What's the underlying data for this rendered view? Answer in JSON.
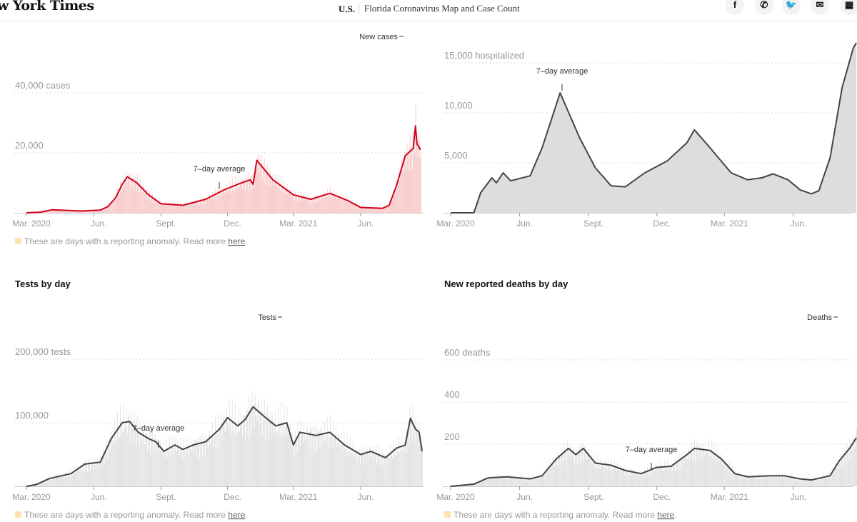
{
  "header": {
    "logo": "w York Times",
    "section": "U.S.",
    "title": "Florida Coronavirus Map and Case Count",
    "social": [
      {
        "name": "facebook-icon",
        "glyph": "f"
      },
      {
        "name": "whatsapp-icon",
        "glyph": "✆"
      },
      {
        "name": "twitter-icon",
        "glyph": "🐦"
      },
      {
        "name": "email-icon",
        "glyph": "✉"
      },
      {
        "name": "gift-icon",
        "glyph": "▦"
      }
    ]
  },
  "footnote": {
    "text": "These are days with a reporting anomaly. Read more ",
    "link": "here",
    "end": ".",
    "color": "#fde2ad"
  },
  "chart_data": [
    {
      "id": "cases",
      "type": "bar",
      "title": "",
      "color": "#d0021b",
      "bar_color": "#f7c9c9",
      "y_ticks": [
        {
          "value": 20000,
          "label": "20,000"
        },
        {
          "value": 40000,
          "label": "40,000 cases"
        }
      ],
      "x_ticks": [
        {
          "date": "2020-03-01",
          "label": "Mar. 2020"
        },
        {
          "date": "2020-06-01",
          "label": "Jun."
        },
        {
          "date": "2020-09-01",
          "label": "Sept."
        },
        {
          "date": "2020-12-01",
          "label": "Dec."
        },
        {
          "date": "2021-03-01",
          "label": "Mar. 2021"
        },
        {
          "date": "2021-06-01",
          "label": "Jun."
        }
      ],
      "annotations": {
        "bars": "New cases",
        "avg": "7–day average"
      },
      "avg_series": [
        [
          "2020-03-01",
          0
        ],
        [
          "2020-03-20",
          200
        ],
        [
          "2020-04-05",
          1000
        ],
        [
          "2020-05-15",
          600
        ],
        [
          "2020-06-10",
          900
        ],
        [
          "2020-06-20",
          2000
        ],
        [
          "2020-07-01",
          5000
        ],
        [
          "2020-07-10",
          9500
        ],
        [
          "2020-07-17",
          12000
        ],
        [
          "2020-07-30",
          10000
        ],
        [
          "2020-08-15",
          6000
        ],
        [
          "2020-09-01",
          3000
        ],
        [
          "2020-10-01",
          2500
        ],
        [
          "2020-11-01",
          4500
        ],
        [
          "2020-11-25",
          7500
        ],
        [
          "2020-12-15",
          9500
        ],
        [
          "2021-01-01",
          11000
        ],
        [
          "2021-01-05",
          9500
        ],
        [
          "2021-01-10",
          17500
        ],
        [
          "2021-02-01",
          11000
        ],
        [
          "2021-03-01",
          6000
        ],
        [
          "2021-03-25",
          4500
        ],
        [
          "2021-04-20",
          6500
        ],
        [
          "2021-05-15",
          4000
        ],
        [
          "2021-06-01",
          1800
        ],
        [
          "2021-07-01",
          1500
        ],
        [
          "2021-07-10",
          2500
        ],
        [
          "2021-07-20",
          9000
        ],
        [
          "2021-08-01",
          19000
        ],
        [
          "2021-08-12",
          21500
        ],
        [
          "2021-08-15",
          29000
        ],
        [
          "2021-08-17",
          23000
        ],
        [
          "2021-08-22",
          21000
        ]
      ]
    },
    {
      "id": "hospitalized",
      "type": "area",
      "title": "",
      "color": "#444444",
      "bar_color": "#dddddd",
      "y_ticks": [
        {
          "value": 5000,
          "label": "5,000"
        },
        {
          "value": 10000,
          "label": "10,000"
        },
        {
          "value": 15000,
          "label": "15,000 hospitalized"
        }
      ],
      "x_ticks": [
        {
          "date": "2020-03-01",
          "label": "Mar. 2020"
        },
        {
          "date": "2020-06-01",
          "label": "Jun."
        },
        {
          "date": "2020-09-01",
          "label": "Sept."
        },
        {
          "date": "2020-12-01",
          "label": "Dec."
        },
        {
          "date": "2021-03-01",
          "label": "Mar. 2021"
        },
        {
          "date": "2021-06-01",
          "label": "Jun."
        }
      ],
      "annotations": {
        "avg": "7–day average"
      },
      "avg_series": [
        [
          "2020-03-01",
          0
        ],
        [
          "2020-04-01",
          0
        ],
        [
          "2020-04-10",
          2000
        ],
        [
          "2020-04-25",
          3500
        ],
        [
          "2020-05-01",
          3000
        ],
        [
          "2020-05-10",
          4000
        ],
        [
          "2020-05-20",
          3200
        ],
        [
          "2020-06-15",
          3700
        ],
        [
          "2020-07-01",
          6500
        ],
        [
          "2020-07-25",
          12000
        ],
        [
          "2020-08-20",
          7500
        ],
        [
          "2020-09-10",
          4500
        ],
        [
          "2020-10-01",
          2700
        ],
        [
          "2020-10-20",
          2600
        ],
        [
          "2020-11-15",
          4000
        ],
        [
          "2020-12-15",
          5200
        ],
        [
          "2021-01-10",
          7000
        ],
        [
          "2021-01-20",
          8300
        ],
        [
          "2021-02-10",
          6500
        ],
        [
          "2021-03-10",
          4000
        ],
        [
          "2021-04-01",
          3300
        ],
        [
          "2021-04-20",
          3500
        ],
        [
          "2021-05-05",
          3900
        ],
        [
          "2021-05-25",
          3300
        ],
        [
          "2021-06-10",
          2300
        ],
        [
          "2021-06-25",
          1900
        ],
        [
          "2021-07-05",
          2200
        ],
        [
          "2021-07-20",
          5500
        ],
        [
          "2021-08-05",
          12500
        ],
        [
          "2021-08-20",
          16500
        ],
        [
          "2021-08-24",
          17000
        ]
      ]
    },
    {
      "id": "tests",
      "type": "bar",
      "title": "Tests by day",
      "color": "#444444",
      "bar_color": "#e2e2e2",
      "y_ticks": [
        {
          "value": 100000,
          "label": "100,000"
        },
        {
          "value": 200000,
          "label": "200,000 tests"
        }
      ],
      "x_ticks": [
        {
          "date": "2020-03-01",
          "label": "Mar. 2020"
        },
        {
          "date": "2020-06-01",
          "label": "Jun."
        },
        {
          "date": "2020-09-01",
          "label": "Sept."
        },
        {
          "date": "2020-12-01",
          "label": "Dec."
        },
        {
          "date": "2021-03-01",
          "label": "Mar. 2021"
        },
        {
          "date": "2021-06-01",
          "label": "Jun."
        }
      ],
      "annotations": {
        "bars": "Tests",
        "avg": "7–day average"
      },
      "avg_series": [
        [
          "2020-03-01",
          0
        ],
        [
          "2020-03-15",
          3000
        ],
        [
          "2020-04-01",
          12000
        ],
        [
          "2020-05-01",
          20000
        ],
        [
          "2020-05-20",
          35000
        ],
        [
          "2020-06-10",
          38000
        ],
        [
          "2020-06-25",
          75000
        ],
        [
          "2020-07-10",
          100000
        ],
        [
          "2020-07-20",
          102000
        ],
        [
          "2020-08-01",
          85000
        ],
        [
          "2020-08-15",
          75000
        ],
        [
          "2020-08-25",
          70000
        ],
        [
          "2020-09-05",
          55000
        ],
        [
          "2020-09-20",
          65000
        ],
        [
          "2020-10-01",
          58000
        ],
        [
          "2020-10-15",
          65000
        ],
        [
          "2020-11-01",
          70000
        ],
        [
          "2020-11-20",
          90000
        ],
        [
          "2020-12-01",
          108000
        ],
        [
          "2020-12-15",
          95000
        ],
        [
          "2020-12-25",
          105000
        ],
        [
          "2021-01-05",
          125000
        ],
        [
          "2021-01-20",
          110000
        ],
        [
          "2021-02-05",
          95000
        ],
        [
          "2021-02-20",
          100000
        ],
        [
          "2021-03-01",
          65000
        ],
        [
          "2021-03-10",
          85000
        ],
        [
          "2021-04-01",
          80000
        ],
        [
          "2021-04-20",
          85000
        ],
        [
          "2021-05-10",
          65000
        ],
        [
          "2021-06-01",
          50000
        ],
        [
          "2021-06-15",
          55000
        ],
        [
          "2021-07-05",
          45000
        ],
        [
          "2021-07-20",
          60000
        ],
        [
          "2021-08-01",
          65000
        ],
        [
          "2021-08-08",
          107000
        ],
        [
          "2021-08-15",
          90000
        ],
        [
          "2021-08-20",
          85000
        ],
        [
          "2021-08-24",
          55000
        ]
      ]
    },
    {
      "id": "deaths",
      "type": "bar",
      "title": "New reported deaths by day",
      "color": "#444444",
      "bar_color": "#e2e2e2",
      "y_ticks": [
        {
          "value": 200,
          "label": "200"
        },
        {
          "value": 400,
          "label": "400"
        },
        {
          "value": 600,
          "label": "600 deaths"
        }
      ],
      "x_ticks": [
        {
          "date": "2020-03-01",
          "label": "Mar. 2020"
        },
        {
          "date": "2020-06-01",
          "label": "Jun."
        },
        {
          "date": "2020-09-01",
          "label": "Sept."
        },
        {
          "date": "2020-12-01",
          "label": "Dec."
        },
        {
          "date": "2021-03-01",
          "label": "Mar. 2021"
        },
        {
          "date": "2021-06-01",
          "label": "Jun."
        }
      ],
      "annotations": {
        "bars": "Deaths",
        "avg": "7–day average"
      },
      "avg_series": [
        [
          "2020-03-01",
          0
        ],
        [
          "2020-04-01",
          10
        ],
        [
          "2020-04-20",
          40
        ],
        [
          "2020-05-15",
          45
        ],
        [
          "2020-06-15",
          35
        ],
        [
          "2020-07-01",
          50
        ],
        [
          "2020-07-20",
          130
        ],
        [
          "2020-08-05",
          180
        ],
        [
          "2020-08-15",
          150
        ],
        [
          "2020-08-25",
          180
        ],
        [
          "2020-09-10",
          110
        ],
        [
          "2020-10-01",
          100
        ],
        [
          "2020-10-20",
          75
        ],
        [
          "2020-11-10",
          60
        ],
        [
          "2020-12-01",
          90
        ],
        [
          "2020-12-20",
          95
        ],
        [
          "2021-01-10",
          150
        ],
        [
          "2021-01-20",
          180
        ],
        [
          "2021-02-10",
          170
        ],
        [
          "2021-02-25",
          130
        ],
        [
          "2021-03-15",
          60
        ],
        [
          "2021-04-01",
          45
        ],
        [
          "2021-05-01",
          50
        ],
        [
          "2021-05-20",
          50
        ],
        [
          "2021-06-10",
          35
        ],
        [
          "2021-06-25",
          30
        ],
        [
          "2021-07-20",
          50
        ],
        [
          "2021-08-01",
          120
        ],
        [
          "2021-08-15",
          180
        ],
        [
          "2021-08-24",
          230
        ]
      ]
    }
  ]
}
